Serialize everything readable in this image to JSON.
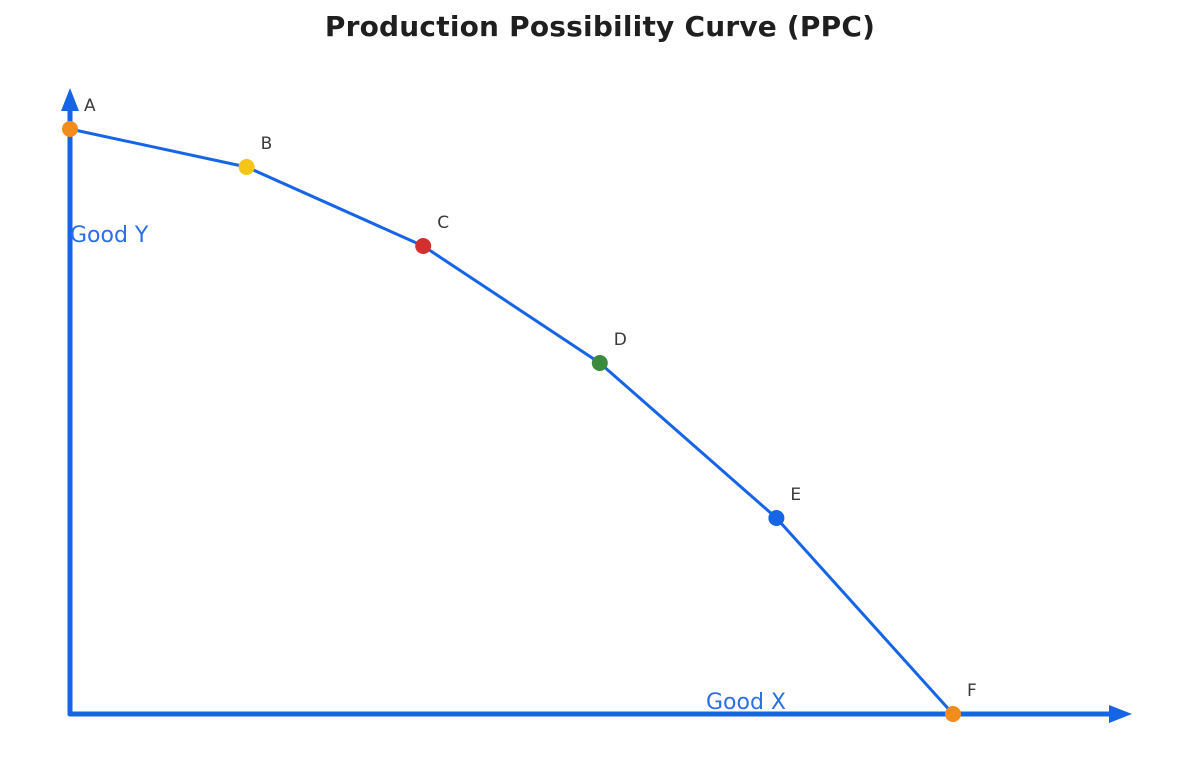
{
  "title": "Production Possibility Curve (PPC)",
  "chart_data": {
    "type": "line",
    "title": "Production Possibility Curve (PPC)",
    "xlabel": "Good X",
    "ylabel": "Good Y",
    "points": [
      {
        "label": "A",
        "x": 0.0,
        "y": 1.0,
        "color": "#f28c1e"
      },
      {
        "label": "B",
        "x": 0.2,
        "y": 0.935,
        "color": "#f5c518"
      },
      {
        "label": "C",
        "x": 0.4,
        "y": 0.8,
        "color": "#d32f2f"
      },
      {
        "label": "D",
        "x": 0.6,
        "y": 0.6,
        "color": "#3b8a3e"
      },
      {
        "label": "E",
        "x": 0.8,
        "y": 0.335,
        "color": "#1565e6"
      },
      {
        "label": "F",
        "x": 1.0,
        "y": 0.0,
        "color": "#f28c1e"
      }
    ],
    "grid": false,
    "line_color": "#1565e6",
    "axis_color": "#1565e6"
  }
}
